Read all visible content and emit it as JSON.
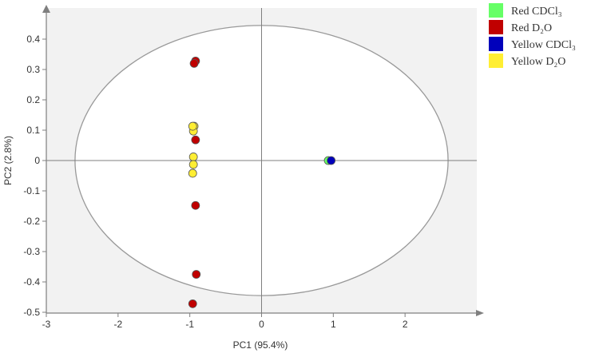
{
  "chart_data": {
    "type": "scatter",
    "xlabel": "PC1 (95.4%)",
    "ylabel": "PC2 (2.8%)",
    "xlim": [
      -3,
      3
    ],
    "ylim": [
      -0.5,
      0.5
    ],
    "xticks": [
      -3,
      -2,
      -1,
      0,
      1,
      2
    ],
    "yticks": [
      -0.5,
      -0.4,
      -0.3,
      -0.2,
      -0.1,
      0,
      0.1,
      0.2,
      0.3,
      0.4
    ],
    "grid": false,
    "reference_lines": {
      "x": 0,
      "y": 0
    },
    "confidence_ellipse": {
      "center": [
        0,
        0
      ],
      "x_radius": 2.6,
      "y_radius": 0.445
    },
    "legend_position": "top-right",
    "series": [
      {
        "name": "Red CDCl₃",
        "color": "#66ff66",
        "x": [
          0.93
        ],
        "y": [
          0.0
        ]
      },
      {
        "name": "Red D₂O",
        "color": "#c00000",
        "x": [
          -0.92,
          -0.94,
          -0.92,
          -0.92,
          -0.91,
          -0.96
        ],
        "y": [
          0.328,
          0.32,
          0.068,
          -0.148,
          -0.375,
          -0.472
        ]
      },
      {
        "name": "Yellow CDCl₃",
        "color": "#0000bb",
        "x": [
          0.97
        ],
        "y": [
          0.0
        ]
      },
      {
        "name": "Yellow D₂O",
        "color": "#ffee33",
        "x": [
          -0.94,
          -0.95,
          -0.95,
          -0.95,
          -0.96,
          -0.96
        ],
        "y": [
          0.113,
          0.097,
          0.012,
          -0.013,
          -0.042,
          0.113
        ]
      }
    ]
  }
}
